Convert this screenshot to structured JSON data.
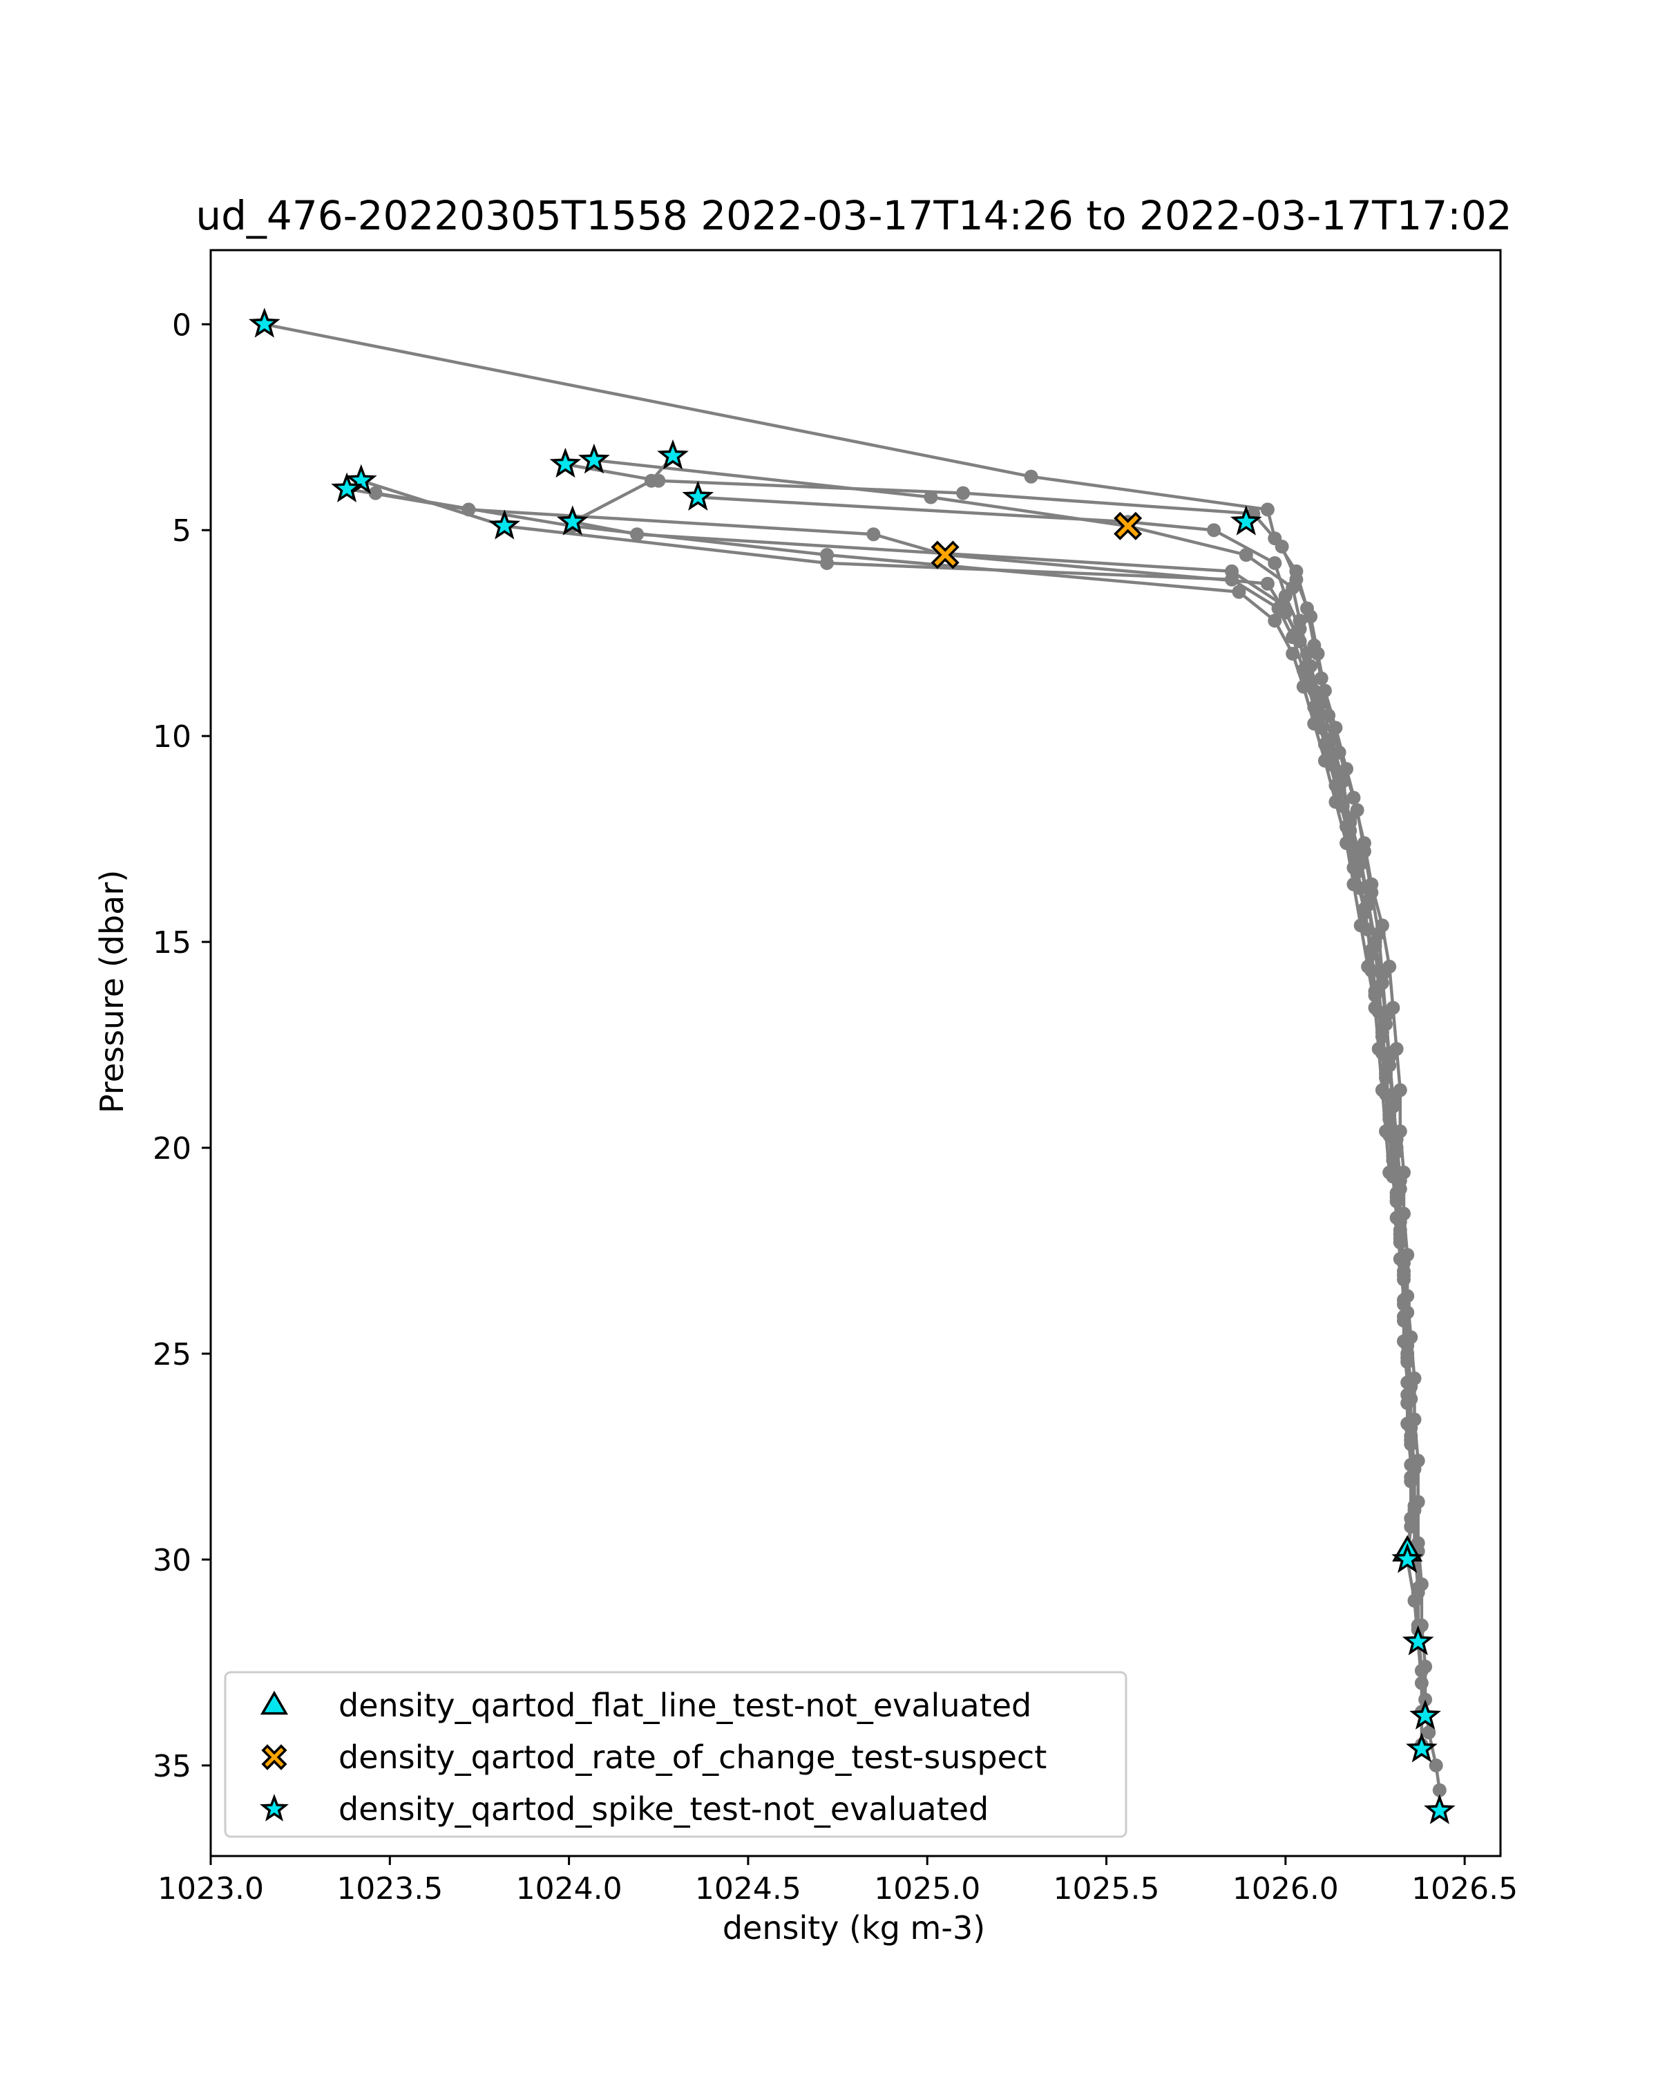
{
  "chart_data": {
    "type": "scatter",
    "title": "ud_476-20220305T1558 2022-03-17T14:26 to 2022-03-17T17:02",
    "xlabel": "density (kg m-3)",
    "ylabel": "Pressure (dbar)",
    "xlim": [
      1023.0,
      1026.6
    ],
    "ylim": [
      37.2,
      -1.8
    ],
    "y_inverted": true,
    "xticks": [
      1023.0,
      1023.5,
      1024.0,
      1024.5,
      1025.0,
      1025.5,
      1026.0,
      1026.5
    ],
    "xtick_labels": [
      "1023.0",
      "1023.5",
      "1024.0",
      "1024.5",
      "1025.0",
      "1025.5",
      "1026.0",
      "1026.5"
    ],
    "yticks": [
      0,
      5,
      10,
      15,
      20,
      25,
      30,
      35
    ],
    "ytick_labels": [
      "0",
      "5",
      "10",
      "15",
      "20",
      "25",
      "30",
      "35"
    ],
    "grid": false,
    "legend_position": "lower-left",
    "colors": {
      "profile_line": "#808080",
      "marker_cyan": "#00e5ee",
      "marker_orange": "#ffa500",
      "marker_edge": "#000000"
    },
    "series": [
      {
        "kind": "line",
        "values": [
          [
            1023.15,
            0.0
          ],
          [
            1025.29,
            3.7
          ],
          [
            1025.95,
            4.5
          ],
          [
            1025.97,
            5.2
          ],
          [
            1026.03,
            6.0
          ],
          [
            1026.06,
            6.9
          ],
          [
            1026.08,
            7.8
          ],
          [
            1026.1,
            8.6
          ],
          [
            1026.12,
            9.5
          ],
          [
            1026.15,
            10.4
          ],
          [
            1026.19,
            11.5
          ],
          [
            1026.22,
            12.6
          ],
          [
            1026.24,
            13.6
          ],
          [
            1026.27,
            14.6
          ],
          [
            1026.29,
            15.6
          ],
          [
            1026.3,
            16.6
          ],
          [
            1026.31,
            17.6
          ],
          [
            1026.32,
            18.6
          ],
          [
            1026.32,
            19.6
          ],
          [
            1026.33,
            20.6
          ],
          [
            1026.33,
            21.6
          ],
          [
            1026.34,
            22.6
          ],
          [
            1026.34,
            23.6
          ],
          [
            1026.35,
            24.6
          ],
          [
            1026.36,
            25.6
          ],
          [
            1026.36,
            26.6
          ],
          [
            1026.37,
            27.6
          ],
          [
            1026.37,
            28.6
          ],
          [
            1026.37,
            29.6
          ],
          [
            1026.38,
            30.6
          ],
          [
            1026.38,
            31.6
          ],
          [
            1026.39,
            32.6
          ],
          [
            1026.39,
            33.4
          ],
          [
            1026.4,
            34.2
          ],
          [
            1026.42,
            35.0
          ],
          [
            1026.43,
            35.6
          ],
          [
            1026.43,
            36.1
          ]
        ]
      },
      {
        "kind": "line",
        "values": [
          [
            1024.29,
            3.2
          ],
          [
            1024.23,
            3.8
          ],
          [
            1024.01,
            4.8
          ],
          [
            1024.19,
            5.1
          ],
          [
            1025.85,
            6.0
          ],
          [
            1025.99,
            6.8
          ],
          [
            1026.03,
            7.5
          ],
          [
            1026.06,
            8.3
          ],
          [
            1026.09,
            9.2
          ],
          [
            1026.12,
            10.1
          ],
          [
            1026.15,
            11.0
          ],
          [
            1026.18,
            12.0
          ],
          [
            1026.21,
            13.0
          ],
          [
            1026.23,
            14.0
          ],
          [
            1026.25,
            15.0
          ],
          [
            1026.27,
            16.0
          ],
          [
            1026.28,
            17.0
          ],
          [
            1026.29,
            18.0
          ],
          [
            1026.3,
            19.0
          ],
          [
            1026.31,
            20.0
          ],
          [
            1026.32,
            21.0
          ],
          [
            1026.32,
            22.0
          ],
          [
            1026.33,
            23.0
          ],
          [
            1026.34,
            24.0
          ],
          [
            1026.34,
            25.0
          ],
          [
            1026.34,
            26.0
          ],
          [
            1026.35,
            27.0
          ],
          [
            1026.35,
            28.0
          ],
          [
            1026.35,
            29.0
          ],
          [
            1026.34,
            30.0
          ],
          [
            1026.36,
            31.0
          ],
          [
            1026.37,
            32.0
          ],
          [
            1026.38,
            33.0
          ],
          [
            1026.39,
            33.8
          ]
        ]
      },
      {
        "kind": "line",
        "values": [
          [
            1024.07,
            3.3
          ],
          [
            1025.01,
            4.2
          ],
          [
            1025.56,
            4.9
          ],
          [
            1025.89,
            5.6
          ],
          [
            1026.02,
            6.4
          ],
          [
            1026.04,
            7.2
          ],
          [
            1026.06,
            8.0
          ],
          [
            1026.08,
            8.9
          ],
          [
            1026.1,
            9.8
          ],
          [
            1026.13,
            10.7
          ],
          [
            1026.16,
            11.7
          ],
          [
            1026.19,
            12.7
          ],
          [
            1026.21,
            13.7
          ],
          [
            1026.23,
            14.7
          ],
          [
            1026.24,
            15.7
          ],
          [
            1026.26,
            16.7
          ],
          [
            1026.27,
            17.7
          ],
          [
            1026.28,
            18.7
          ],
          [
            1026.29,
            19.7
          ],
          [
            1026.3,
            20.7
          ],
          [
            1026.31,
            21.7
          ],
          [
            1026.32,
            22.7
          ],
          [
            1026.33,
            23.7
          ],
          [
            1026.33,
            24.7
          ],
          [
            1026.34,
            25.7
          ],
          [
            1026.34,
            26.7
          ],
          [
            1026.35,
            27.7
          ],
          [
            1026.36,
            28.7
          ],
          [
            1026.36,
            29.7
          ],
          [
            1026.37,
            30.7
          ],
          [
            1026.37,
            31.7
          ],
          [
            1026.38,
            32.7
          ],
          [
            1026.38,
            33.7
          ],
          [
            1026.38,
            34.5
          ]
        ]
      },
      {
        "kind": "line",
        "values": [
          [
            1023.99,
            3.4
          ],
          [
            1024.25,
            3.8
          ],
          [
            1025.1,
            4.1
          ],
          [
            1025.91,
            4.6
          ],
          [
            1025.99,
            5.4
          ],
          [
            1026.03,
            6.2
          ],
          [
            1026.07,
            7.1
          ],
          [
            1026.09,
            8.0
          ],
          [
            1026.11,
            8.9
          ],
          [
            1026.14,
            9.8
          ],
          [
            1026.17,
            10.8
          ],
          [
            1026.2,
            11.8
          ],
          [
            1026.22,
            12.8
          ],
          [
            1026.24,
            13.8
          ],
          [
            1026.26,
            14.8
          ],
          [
            1026.27,
            15.8
          ],
          [
            1026.28,
            16.8
          ],
          [
            1026.29,
            17.8
          ],
          [
            1026.3,
            18.8
          ],
          [
            1026.31,
            19.8
          ],
          [
            1026.32,
            20.8
          ],
          [
            1026.32,
            21.8
          ],
          [
            1026.33,
            22.8
          ],
          [
            1026.33,
            23.8
          ],
          [
            1026.34,
            24.8
          ],
          [
            1026.35,
            25.8
          ],
          [
            1026.35,
            26.8
          ],
          [
            1026.36,
            27.8
          ],
          [
            1026.36,
            28.8
          ],
          [
            1026.37,
            29.8
          ],
          [
            1026.37,
            30.8
          ],
          [
            1026.37,
            31.6
          ],
          [
            1026.37,
            32.0
          ]
        ]
      },
      {
        "kind": "line",
        "values": [
          [
            1024.36,
            4.2
          ],
          [
            1025.56,
            4.8
          ],
          [
            1025.8,
            5.0
          ],
          [
            1025.97,
            5.8
          ],
          [
            1026.0,
            6.6
          ],
          [
            1026.04,
            7.4
          ],
          [
            1026.07,
            8.3
          ],
          [
            1026.1,
            9.2
          ],
          [
            1026.13,
            10.1
          ],
          [
            1026.16,
            11.1
          ],
          [
            1026.18,
            12.1
          ],
          [
            1026.21,
            13.1
          ],
          [
            1026.23,
            14.1
          ],
          [
            1026.25,
            15.1
          ],
          [
            1026.26,
            16.1
          ],
          [
            1026.27,
            17.1
          ],
          [
            1026.28,
            18.1
          ],
          [
            1026.29,
            19.1
          ],
          [
            1026.31,
            20.1
          ],
          [
            1026.31,
            21.1
          ],
          [
            1026.32,
            22.1
          ],
          [
            1026.33,
            23.1
          ],
          [
            1026.33,
            24.1
          ],
          [
            1026.34,
            25.1
          ],
          [
            1026.35,
            26.1
          ],
          [
            1026.35,
            27.1
          ],
          [
            1026.35,
            28.1
          ],
          [
            1026.35,
            29.2
          ],
          [
            1026.34,
            30.0
          ]
        ]
      },
      {
        "kind": "line",
        "values": [
          [
            1023.42,
            3.8
          ],
          [
            1023.82,
            4.9
          ],
          [
            1024.72,
            5.8
          ],
          [
            1025.85,
            6.2
          ],
          [
            1025.98,
            6.9
          ],
          [
            1026.02,
            7.6
          ],
          [
            1026.05,
            8.4
          ],
          [
            1026.08,
            9.3
          ],
          [
            1026.11,
            10.2
          ],
          [
            1026.14,
            11.2
          ],
          [
            1026.17,
            12.2
          ],
          [
            1026.19,
            13.2
          ],
          [
            1026.22,
            14.2
          ],
          [
            1026.24,
            15.2
          ],
          [
            1026.25,
            16.2
          ],
          [
            1026.27,
            17.2
          ],
          [
            1026.28,
            18.2
          ],
          [
            1026.29,
            19.2
          ],
          [
            1026.3,
            20.2
          ],
          [
            1026.31,
            21.2
          ],
          [
            1026.32,
            22.2
          ],
          [
            1026.33,
            23.2
          ],
          [
            1026.33,
            24.2
          ],
          [
            1026.34,
            25.2
          ],
          [
            1026.34,
            26.2
          ],
          [
            1026.35,
            27.2
          ]
        ]
      },
      {
        "kind": "line",
        "values": [
          [
            1023.38,
            4.0
          ],
          [
            1023.72,
            4.5
          ],
          [
            1024.85,
            5.1
          ],
          [
            1025.05,
            5.6
          ],
          [
            1025.95,
            6.3
          ],
          [
            1026.0,
            7.0
          ],
          [
            1026.04,
            7.7
          ],
          [
            1026.06,
            8.5
          ],
          [
            1026.09,
            9.4
          ],
          [
            1026.12,
            10.3
          ],
          [
            1026.15,
            11.3
          ],
          [
            1026.18,
            12.3
          ],
          [
            1026.2,
            13.3
          ],
          [
            1026.22,
            14.3
          ],
          [
            1026.24,
            15.3
          ],
          [
            1026.25,
            16.3
          ],
          [
            1026.27,
            17.3
          ],
          [
            1026.28,
            18.3
          ],
          [
            1026.29,
            19.3
          ],
          [
            1026.3,
            20.3
          ],
          [
            1026.31,
            21.3
          ],
          [
            1026.32,
            22.3
          ]
        ]
      },
      {
        "kind": "line",
        "values": [
          [
            1023.46,
            4.1
          ],
          [
            1024.01,
            4.9
          ],
          [
            1024.72,
            5.6
          ],
          [
            1025.87,
            6.5
          ],
          [
            1025.97,
            7.2
          ],
          [
            1026.02,
            8.0
          ],
          [
            1026.05,
            8.8
          ],
          [
            1026.08,
            9.7
          ],
          [
            1026.11,
            10.6
          ],
          [
            1026.14,
            11.6
          ],
          [
            1026.17,
            12.6
          ],
          [
            1026.19,
            13.6
          ],
          [
            1026.21,
            14.6
          ],
          [
            1026.23,
            15.6
          ],
          [
            1026.25,
            16.6
          ],
          [
            1026.26,
            17.6
          ],
          [
            1026.27,
            18.6
          ],
          [
            1026.28,
            19.6
          ],
          [
            1026.29,
            20.6
          ]
        ]
      },
      {
        "kind": "scatter",
        "name": "density_qartod_flat_line_test-not_evaluated",
        "marker": "triangle",
        "color": "#00e5ee",
        "values": [
          [
            1026.34,
            29.8
          ]
        ]
      },
      {
        "kind": "scatter",
        "name": "density_qartod_rate_of_change_test-suspect",
        "marker": "x",
        "color": "#ffa500",
        "values": [
          [
            1025.56,
            4.9
          ],
          [
            1025.05,
            5.6
          ]
        ]
      },
      {
        "kind": "scatter",
        "name": "density_qartod_spike_test-not_evaluated",
        "marker": "star",
        "color": "#00e5ee",
        "values": [
          [
            1023.15,
            0.0
          ],
          [
            1024.29,
            3.2
          ],
          [
            1024.07,
            3.3
          ],
          [
            1023.99,
            3.4
          ],
          [
            1023.42,
            3.8
          ],
          [
            1023.38,
            4.0
          ],
          [
            1024.36,
            4.2
          ],
          [
            1025.89,
            4.8
          ],
          [
            1023.82,
            4.9
          ],
          [
            1024.01,
            4.8
          ],
          [
            1026.34,
            30.0
          ],
          [
            1026.37,
            32.0
          ],
          [
            1026.39,
            33.8
          ],
          [
            1026.38,
            34.6
          ],
          [
            1026.43,
            36.1
          ]
        ]
      }
    ]
  }
}
